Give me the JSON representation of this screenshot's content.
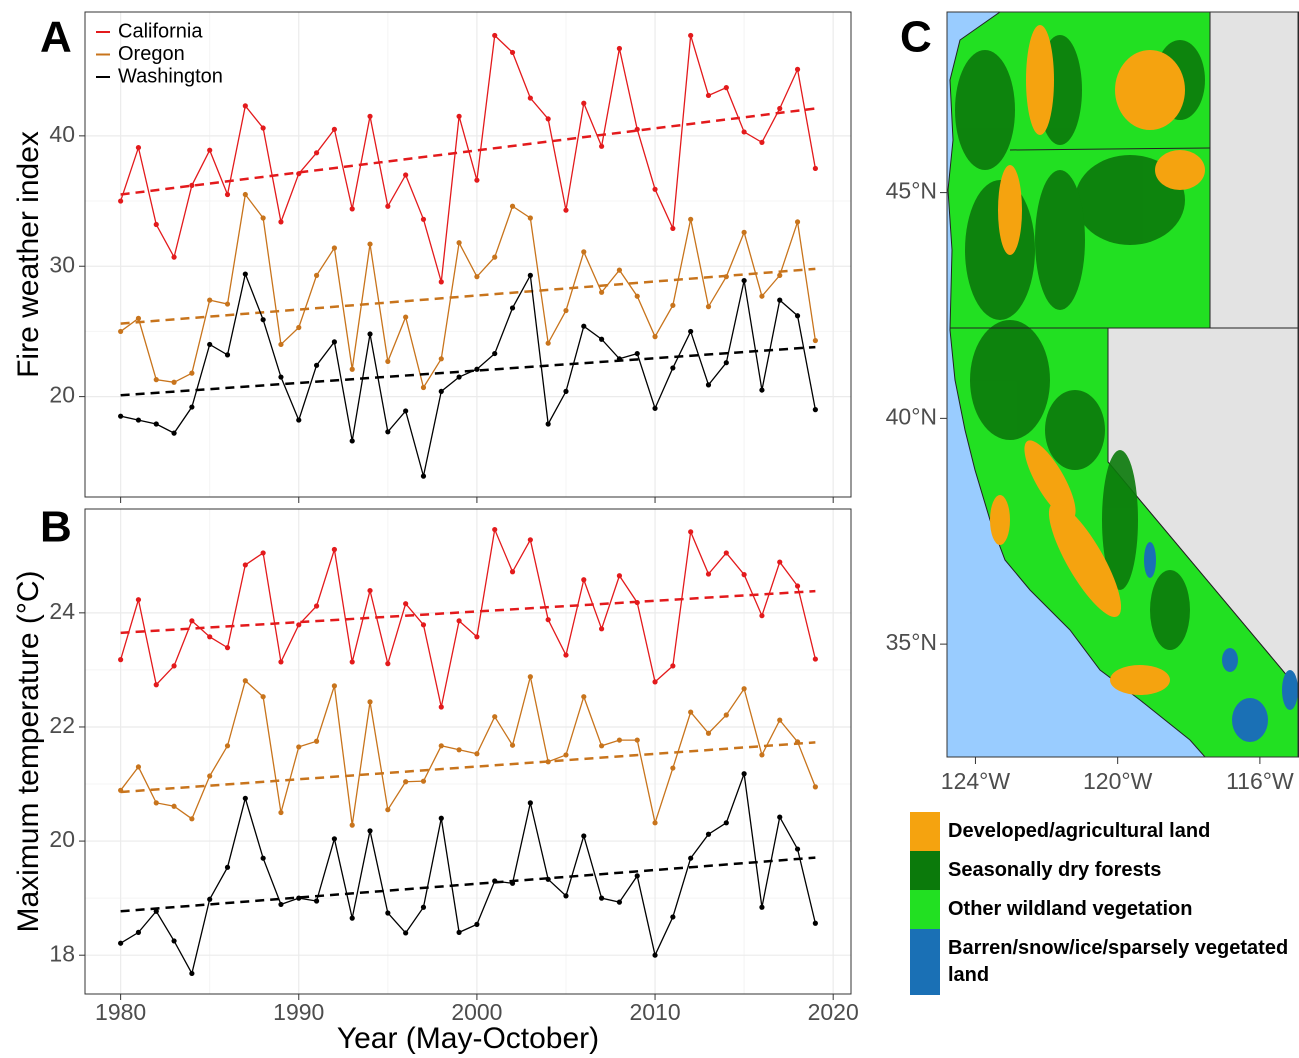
{
  "chart_data": [
    {
      "type": "line",
      "panel": "A",
      "ylabel": "Fire weather index",
      "show_xtick_labels": false,
      "x": [
        1980,
        1981,
        1982,
        1983,
        1984,
        1985,
        1986,
        1987,
        1988,
        1989,
        1990,
        1991,
        1992,
        1993,
        1994,
        1995,
        1996,
        1997,
        1998,
        1999,
        2000,
        2001,
        2002,
        2003,
        2004,
        2005,
        2006,
        2007,
        2008,
        2009,
        2010,
        2011,
        2012,
        2013,
        2014,
        2015,
        2016,
        2017,
        2018,
        2019
      ],
      "xlim": [
        1978,
        2021
      ],
      "xticks": [
        1980,
        1990,
        2000,
        2010,
        2020
      ],
      "ylim": [
        12.3,
        49.5
      ],
      "yticks": [
        20,
        30,
        40
      ],
      "grid": true,
      "legend": "top-left",
      "series": [
        {
          "name": "California",
          "color": "#e31a1c",
          "values": [
            35.0,
            39.1,
            33.2,
            30.7,
            36.2,
            38.9,
            35.5,
            42.3,
            40.6,
            33.4,
            37.1,
            38.7,
            40.5,
            34.4,
            41.5,
            34.6,
            37.0,
            33.6,
            28.8,
            41.5,
            36.6,
            47.7,
            46.4,
            42.9,
            41.3,
            34.3,
            42.5,
            39.2,
            46.7,
            40.5,
            35.9,
            32.9,
            47.7,
            43.1,
            43.7,
            40.3,
            39.5,
            42.1,
            45.1,
            37.5
          ],
          "trend": {
            "x": [
              1980,
              2019
            ],
            "values": [
              35.5,
              42.1
            ]
          }
        },
        {
          "name": "Oregon",
          "color": "#c8741c",
          "values": [
            25.0,
            26.0,
            21.3,
            21.1,
            21.8,
            27.4,
            27.1,
            35.5,
            33.7,
            24.0,
            25.3,
            29.3,
            31.4,
            22.1,
            31.7,
            22.7,
            26.1,
            20.7,
            22.9,
            31.8,
            29.2,
            30.7,
            34.6,
            33.7,
            24.1,
            26.6,
            31.1,
            28.0,
            29.7,
            27.7,
            24.6,
            27.0,
            33.6,
            26.9,
            29.2,
            32.6,
            27.7,
            29.3,
            33.4,
            24.3
          ],
          "trend": {
            "x": [
              1980,
              2019
            ],
            "values": [
              25.6,
              29.8
            ]
          }
        },
        {
          "name": "Washington",
          "color": "#000000",
          "values": [
            18.5,
            18.2,
            17.9,
            17.2,
            19.2,
            24.0,
            23.2,
            29.4,
            25.9,
            21.5,
            18.2,
            22.4,
            24.2,
            16.6,
            24.8,
            17.3,
            18.9,
            13.9,
            20.4,
            21.5,
            22.1,
            23.3,
            26.8,
            29.3,
            17.9,
            20.4,
            25.4,
            24.4,
            22.9,
            23.3,
            19.1,
            22.2,
            25.0,
            20.9,
            22.6,
            28.9,
            20.5,
            27.4,
            26.2,
            19.0
          ],
          "trend": {
            "x": [
              1980,
              2019
            ],
            "values": [
              20.1,
              23.8
            ]
          }
        }
      ]
    },
    {
      "type": "line",
      "panel": "B",
      "ylabel": "Maximum temperature (°C)",
      "xlabel": "Year (May-October)",
      "show_xtick_labels": true,
      "x": [
        1980,
        1981,
        1982,
        1983,
        1984,
        1985,
        1986,
        1987,
        1988,
        1989,
        1990,
        1991,
        1992,
        1993,
        1994,
        1995,
        1996,
        1997,
        1998,
        1999,
        2000,
        2001,
        2002,
        2003,
        2004,
        2005,
        2006,
        2007,
        2008,
        2009,
        2010,
        2011,
        2012,
        2013,
        2014,
        2015,
        2016,
        2017,
        2018,
        2019
      ],
      "xlim": [
        1978,
        2021
      ],
      "xticks": [
        1980,
        1990,
        2000,
        2010,
        2020
      ],
      "ylim": [
        17.32,
        25.82
      ],
      "yticks": [
        18,
        20,
        22,
        24
      ],
      "grid": true,
      "series": [
        {
          "color": "#e31a1c",
          "values": [
            23.18,
            24.23,
            22.74,
            23.07,
            23.86,
            23.58,
            23.39,
            24.84,
            25.05,
            23.14,
            23.79,
            24.12,
            25.11,
            23.14,
            24.39,
            23.11,
            24.16,
            23.79,
            22.35,
            23.86,
            23.58,
            25.46,
            24.72,
            25.28,
            23.88,
            23.26,
            24.58,
            23.72,
            24.65,
            24.18,
            22.79,
            23.07,
            25.42,
            24.68,
            25.05,
            24.67,
            23.95,
            24.89,
            24.47,
            23.19
          ],
          "trend": {
            "x": [
              1980,
              2019
            ],
            "values": [
              23.65,
              24.38
            ]
          }
        },
        {
          "color": "#c8741c",
          "values": [
            20.89,
            21.3,
            20.67,
            20.61,
            20.39,
            21.14,
            21.67,
            22.81,
            22.53,
            20.5,
            21.65,
            21.75,
            22.72,
            20.28,
            22.44,
            20.55,
            21.04,
            21.05,
            21.67,
            21.6,
            21.53,
            22.18,
            21.68,
            22.88,
            21.39,
            21.51,
            22.53,
            21.67,
            21.77,
            21.77,
            20.32,
            21.28,
            22.26,
            21.89,
            22.21,
            22.67,
            21.51,
            22.12,
            21.74,
            20.95
          ],
          "trend": {
            "x": [
              1980,
              2019
            ],
            "values": [
              20.86,
              21.73
            ]
          }
        },
        {
          "color": "#000000",
          "values": [
            18.21,
            18.4,
            18.77,
            18.25,
            17.68,
            18.98,
            19.54,
            20.75,
            19.7,
            18.89,
            19.0,
            18.95,
            20.04,
            18.65,
            20.18,
            18.74,
            18.39,
            18.84,
            20.4,
            18.4,
            18.54,
            19.3,
            19.26,
            20.67,
            19.33,
            19.04,
            20.09,
            19.0,
            18.93,
            19.39,
            18.0,
            18.67,
            19.7,
            20.12,
            20.32,
            21.18,
            18.84,
            20.42,
            19.86,
            18.56
          ],
          "trend": {
            "x": [
              1980,
              2019
            ],
            "values": [
              18.77,
              19.71
            ]
          }
        }
      ]
    },
    {
      "type": "map",
      "panel": "C",
      "xlim": [
        -124.8,
        -114.9
      ],
      "ylim": [
        32.5,
        49.0
      ],
      "xticks": [
        {
          "value": -124,
          "label": "124°W"
        },
        {
          "value": -120,
          "label": "120°W"
        },
        {
          "value": -116,
          "label": "116°W"
        }
      ],
      "yticks": [
        {
          "value": 45,
          "label": "45°N"
        },
        {
          "value": 40,
          "label": "40°N"
        },
        {
          "value": 35,
          "label": "35°N"
        }
      ],
      "legend_items": [
        {
          "name": "Developed/agricultural land",
          "color": "#f5a30f"
        },
        {
          "name": "Seasonally dry forests",
          "color": "#0b7a0b"
        },
        {
          "name": "Other wildland vegetation",
          "color": "#22e022"
        },
        {
          "name": "Barren/snow/ice/sparsely vegetated land",
          "color": "#1a70b5"
        }
      ]
    }
  ]
}
